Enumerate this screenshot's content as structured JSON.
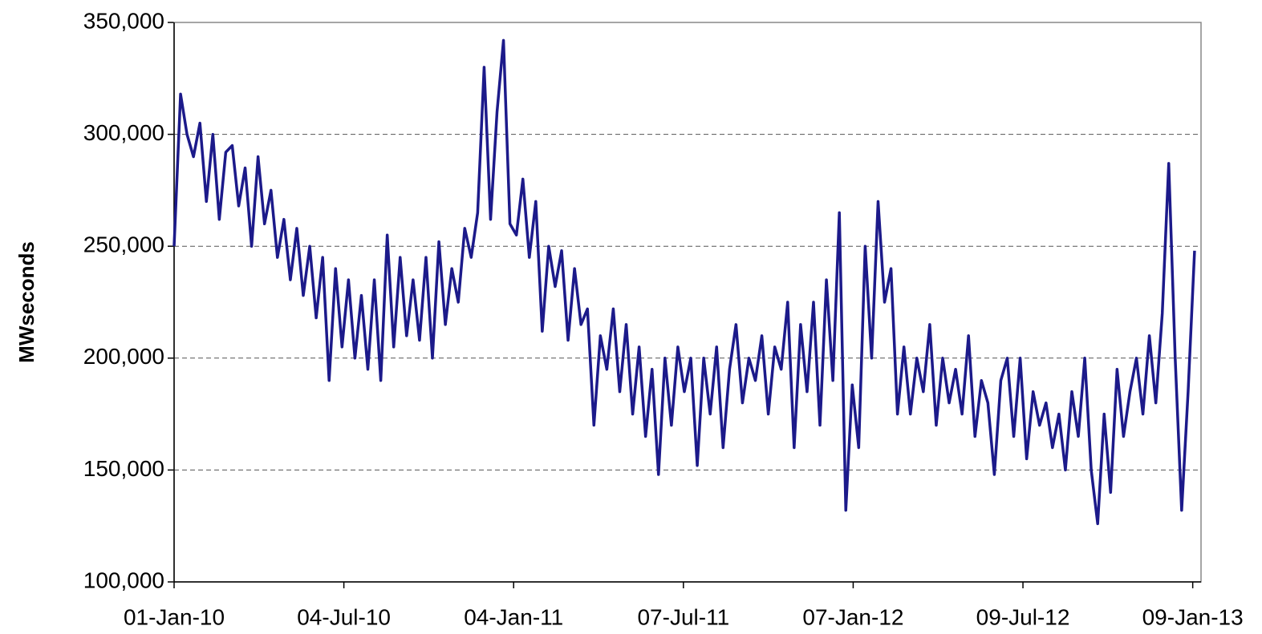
{
  "chart_data": {
    "type": "line",
    "y_label": "MWseconds",
    "x": [
      "2010-01-01",
      "2010-01-08",
      "2010-01-15",
      "2010-01-22",
      "2010-01-29",
      "2010-02-05",
      "2010-02-12",
      "2010-02-19",
      "2010-02-26",
      "2010-03-05",
      "2010-03-12",
      "2010-03-19",
      "2010-03-26",
      "2010-04-02",
      "2010-04-09",
      "2010-04-16",
      "2010-04-23",
      "2010-04-30",
      "2010-05-07",
      "2010-05-14",
      "2010-05-21",
      "2010-05-28",
      "2010-06-04",
      "2010-06-11",
      "2010-06-18",
      "2010-06-25",
      "2010-07-02",
      "2010-07-09",
      "2010-07-16",
      "2010-07-23",
      "2010-07-30",
      "2010-08-06",
      "2010-08-13",
      "2010-08-20",
      "2010-08-27",
      "2010-09-03",
      "2010-09-10",
      "2010-09-17",
      "2010-09-24",
      "2010-10-01",
      "2010-10-08",
      "2010-10-15",
      "2010-10-22",
      "2010-10-29",
      "2010-11-05",
      "2010-11-12",
      "2010-11-19",
      "2010-11-26",
      "2010-12-03",
      "2010-12-10",
      "2010-12-17",
      "2010-12-24",
      "2010-12-31",
      "2011-01-07",
      "2011-01-14",
      "2011-01-21",
      "2011-01-28",
      "2011-02-04",
      "2011-02-11",
      "2011-02-18",
      "2011-02-25",
      "2011-03-04",
      "2011-03-11",
      "2011-03-18",
      "2011-03-25",
      "2011-04-01",
      "2011-04-08",
      "2011-04-15",
      "2011-04-22",
      "2011-04-29",
      "2011-05-06",
      "2011-05-13",
      "2011-05-20",
      "2011-05-27",
      "2011-06-03",
      "2011-06-10",
      "2011-06-17",
      "2011-06-24",
      "2011-07-01",
      "2011-07-08",
      "2011-07-15",
      "2011-07-22",
      "2011-07-29",
      "2011-08-05",
      "2011-08-12",
      "2011-08-19",
      "2011-08-26",
      "2011-09-02",
      "2011-09-09",
      "2011-09-16",
      "2011-09-23",
      "2011-09-30",
      "2011-10-07",
      "2011-10-14",
      "2011-10-21",
      "2011-10-28",
      "2011-11-04",
      "2011-11-11",
      "2011-11-18",
      "2011-11-25",
      "2011-12-02",
      "2011-12-09",
      "2011-12-16",
      "2011-12-23",
      "2011-12-30",
      "2012-01-06",
      "2012-01-13",
      "2012-01-20",
      "2012-01-27",
      "2012-02-03",
      "2012-02-10",
      "2012-02-17",
      "2012-02-24",
      "2012-03-02",
      "2012-03-09",
      "2012-03-16",
      "2012-03-23",
      "2012-03-30",
      "2012-04-06",
      "2012-04-13",
      "2012-04-20",
      "2012-04-27",
      "2012-05-04",
      "2012-05-11",
      "2012-05-18",
      "2012-05-25",
      "2012-06-01",
      "2012-06-08",
      "2012-06-15",
      "2012-06-22",
      "2012-06-29",
      "2012-07-06",
      "2012-07-13",
      "2012-07-20",
      "2012-07-27",
      "2012-08-03",
      "2012-08-10",
      "2012-08-17",
      "2012-08-24",
      "2012-08-31",
      "2012-09-07",
      "2012-09-14",
      "2012-09-21",
      "2012-09-28",
      "2012-10-05",
      "2012-10-12",
      "2012-10-19",
      "2012-10-26",
      "2012-11-02",
      "2012-11-09",
      "2012-11-16",
      "2012-11-23",
      "2012-11-30",
      "2012-12-07",
      "2012-12-14",
      "2012-12-21",
      "2012-12-28",
      "2013-01-04",
      "2013-01-11"
    ],
    "series": [
      {
        "name": "MWseconds",
        "color": "#1c1a8a",
        "values": [
          250000,
          318000,
          300000,
          290000,
          305000,
          270000,
          300000,
          262000,
          292000,
          295000,
          268000,
          285000,
          250000,
          290000,
          260000,
          275000,
          245000,
          262000,
          235000,
          258000,
          228000,
          250000,
          218000,
          245000,
          190000,
          240000,
          205000,
          235000,
          200000,
          228000,
          195000,
          235000,
          190000,
          255000,
          205000,
          245000,
          210000,
          235000,
          208000,
          245000,
          200000,
          252000,
          215000,
          240000,
          225000,
          258000,
          245000,
          265000,
          330000,
          262000,
          310000,
          342000,
          260000,
          255000,
          280000,
          245000,
          270000,
          212000,
          250000,
          232000,
          248000,
          208000,
          240000,
          215000,
          222000,
          170000,
          210000,
          195000,
          222000,
          185000,
          215000,
          175000,
          205000,
          165000,
          195000,
          148000,
          200000,
          170000,
          205000,
          185000,
          200000,
          152000,
          200000,
          175000,
          205000,
          160000,
          195000,
          215000,
          180000,
          200000,
          190000,
          210000,
          175000,
          205000,
          195000,
          225000,
          160000,
          215000,
          185000,
          225000,
          170000,
          235000,
          190000,
          265000,
          132000,
          188000,
          160000,
          250000,
          200000,
          270000,
          225000,
          240000,
          175000,
          205000,
          175000,
          200000,
          185000,
          215000,
          170000,
          200000,
          180000,
          195000,
          175000,
          210000,
          165000,
          190000,
          180000,
          148000,
          190000,
          200000,
          165000,
          200000,
          155000,
          185000,
          170000,
          180000,
          160000,
          175000,
          150000,
          185000,
          165000,
          200000,
          150000,
          126000,
          175000,
          140000,
          195000,
          165000,
          185000,
          200000,
          175000,
          210000,
          180000,
          220000,
          287000,
          200000,
          132000,
          185000,
          248000
        ]
      }
    ],
    "xlim": [
      "2010-01-01",
      "2013-01-18"
    ],
    "xticks": [
      {
        "value": "2010-01-01",
        "label": "01-Jan-10"
      },
      {
        "value": "2010-07-04",
        "label": "04-Jul-10"
      },
      {
        "value": "2011-01-04",
        "label": "04-Jan-11"
      },
      {
        "value": "2011-07-07",
        "label": "07-Jul-11"
      },
      {
        "value": "2012-01-07",
        "label": "07-Jan-12"
      },
      {
        "value": "2012-07-09",
        "label": "09-Jul-12"
      },
      {
        "value": "2013-01-09",
        "label": "09-Jan-13"
      }
    ],
    "ylim": [
      100000,
      350000
    ],
    "yticks": [
      {
        "value": 100000,
        "label": "100,000"
      },
      {
        "value": 150000,
        "label": "150,000"
      },
      {
        "value": 200000,
        "label": "200,000"
      },
      {
        "value": 250000,
        "label": "250,000"
      },
      {
        "value": 300000,
        "label": "300,000"
      },
      {
        "value": 350000,
        "label": "350,000"
      }
    ],
    "grid": true
  }
}
